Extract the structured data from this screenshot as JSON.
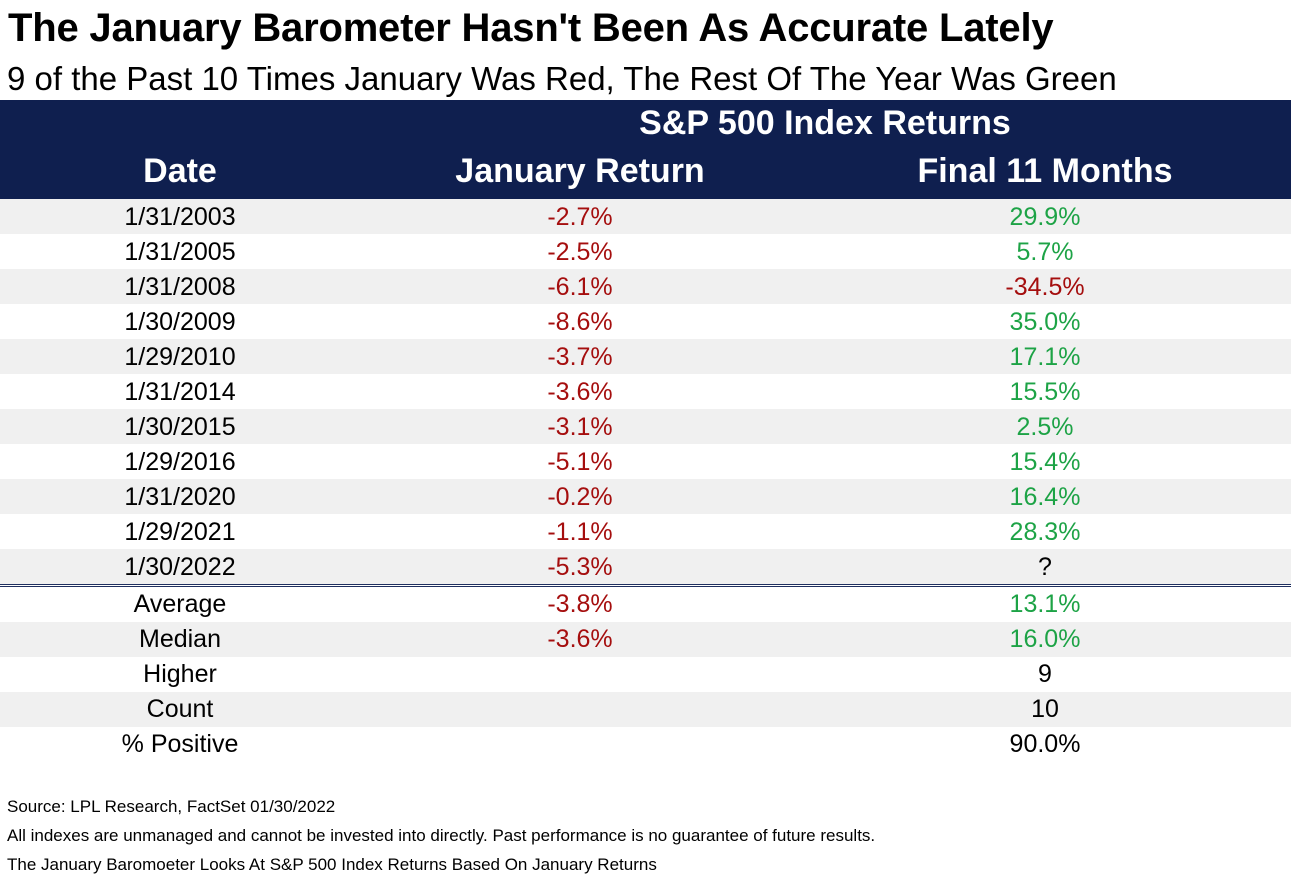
{
  "title": "The January Barometer Hasn't Been As Accurate Lately",
  "subtitle": "9 of the Past 10 Times January Was Red, The Rest Of The Year Was Green",
  "header": {
    "group": "S&P 500 Index Returns",
    "col_date": "Date",
    "col_jan": "January Return",
    "col_final": "Final 11 Months"
  },
  "rows": [
    {
      "date": "1/31/2003",
      "jan": "-2.7%",
      "final": "29.9%"
    },
    {
      "date": "1/31/2005",
      "jan": "-2.5%",
      "final": "5.7%"
    },
    {
      "date": "1/31/2008",
      "jan": "-6.1%",
      "final": "-34.5%"
    },
    {
      "date": "1/30/2009",
      "jan": "-8.6%",
      "final": "35.0%"
    },
    {
      "date": "1/29/2010",
      "jan": "-3.7%",
      "final": "17.1%"
    },
    {
      "date": "1/31/2014",
      "jan": "-3.6%",
      "final": "15.5%"
    },
    {
      "date": "1/30/2015",
      "jan": "-3.1%",
      "final": "2.5%"
    },
    {
      "date": "1/29/2016",
      "jan": "-5.1%",
      "final": "15.4%"
    },
    {
      "date": "1/31/2020",
      "jan": "-0.2%",
      "final": "16.4%"
    },
    {
      "date": "1/29/2021",
      "jan": "-1.1%",
      "final": "28.3%"
    },
    {
      "date": "1/30/2022",
      "jan": "-5.3%",
      "final": "?"
    }
  ],
  "stats": [
    {
      "label": "Average",
      "jan": "-3.8%",
      "final": "13.1%"
    },
    {
      "label": "Median",
      "jan": "-3.6%",
      "final": "16.0%"
    },
    {
      "label": "Higher",
      "jan": "",
      "final": "9"
    },
    {
      "label": "Count",
      "jan": "",
      "final": "10"
    },
    {
      "label": "% Positive",
      "jan": "",
      "final": "90.0%"
    }
  ],
  "footer": {
    "source": "Source: LPL Research, FactSet 01/30/2022",
    "disclaimer": "All indexes are unmanaged and cannot be invested into directly. Past performance is no guarantee of future results.",
    "note": "The January Baromoeter Looks At S&P 500 Index Returns Based On January Returns"
  },
  "colors": {
    "header_bg": "#0f1f4f",
    "negative": "#a50e0e",
    "positive": "#1da346",
    "row_shade": "#f0f0f0"
  }
}
